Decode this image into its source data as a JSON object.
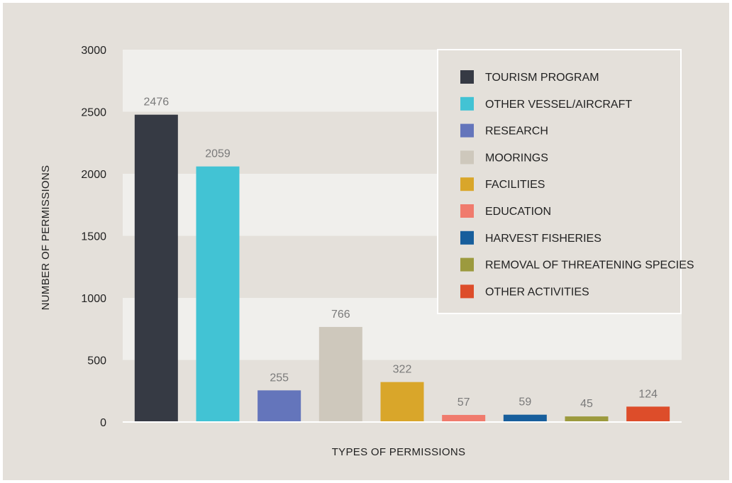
{
  "chart_data": {
    "type": "bar",
    "xlabel": "TYPES OF PERMISSIONS",
    "ylabel": "NUMBER OF PERMISSIONS",
    "ylim": [
      0,
      3000
    ],
    "yticks": [
      0,
      500,
      1000,
      1500,
      2000,
      2500,
      3000
    ],
    "grid": "alternating horizontal bands",
    "legend_position": "top-right",
    "categories": [
      "TOURISM PROGRAM",
      "OTHER VESSEL/AIRCRAFT",
      "RESEARCH",
      "MOORINGS",
      "FACILITIES",
      "EDUCATION",
      "HARVEST FISHERIES",
      "REMOVAL OF THREATENING SPECIES",
      "OTHER ACTIVITIES"
    ],
    "values": [
      2476,
      2059,
      255,
      766,
      322,
      57,
      59,
      45,
      124
    ],
    "colors": [
      "#363a44",
      "#42c3d4",
      "#6475bb",
      "#cec8bc",
      "#d9a62a",
      "#f07b6d",
      "#175e9c",
      "#9c9a3e",
      "#dd4d2a"
    ]
  },
  "style": {
    "background": "#e4e0da",
    "band_light": "#f0efec",
    "band_dark": "#e4e0da"
  }
}
